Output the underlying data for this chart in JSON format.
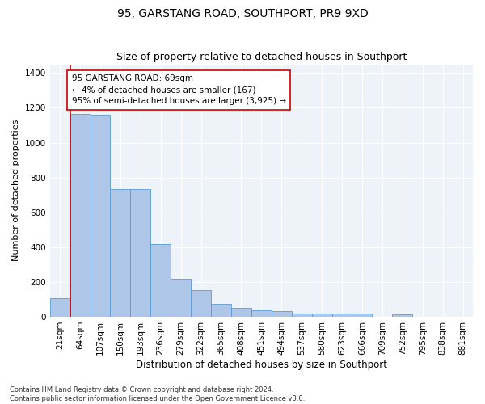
{
  "title": "95, GARSTANG ROAD, SOUTHPORT, PR9 9XD",
  "subtitle": "Size of property relative to detached houses in Southport",
  "xlabel": "Distribution of detached houses by size in Southport",
  "ylabel": "Number of detached properties",
  "categories": [
    "21sqm",
    "64sqm",
    "107sqm",
    "150sqm",
    "193sqm",
    "236sqm",
    "279sqm",
    "322sqm",
    "365sqm",
    "408sqm",
    "451sqm",
    "494sqm",
    "537sqm",
    "580sqm",
    "623sqm",
    "666sqm",
    "709sqm",
    "752sqm",
    "795sqm",
    "838sqm",
    "881sqm"
  ],
  "values": [
    107,
    1163,
    1158,
    733,
    733,
    418,
    218,
    152,
    72,
    50,
    35,
    33,
    20,
    17,
    17,
    20,
    0,
    15,
    0,
    0,
    0
  ],
  "bar_color": "#aec6e8",
  "bar_edge_color": "#5b9bd5",
  "highlight_bar_index": 1,
  "highlight_color": "#cc0000",
  "annotation_line1": "95 GARSTANG ROAD: 69sqm",
  "annotation_line2": "← 4% of detached houses are smaller (167)",
  "annotation_line3": "95% of semi-detached houses are larger (3,925) →",
  "annotation_box_color": "#ffffff",
  "annotation_box_edge": "#cc0000",
  "ylim": [
    0,
    1450
  ],
  "yticks": [
    0,
    200,
    400,
    600,
    800,
    1000,
    1200,
    1400
  ],
  "footer": "Contains HM Land Registry data © Crown copyright and database right 2024.\nContains public sector information licensed under the Open Government Licence v3.0.",
  "bg_color": "#eef2f9",
  "title_fontsize": 10,
  "subtitle_fontsize": 9,
  "xlabel_fontsize": 8.5,
  "ylabel_fontsize": 8,
  "tick_fontsize": 7.5,
  "annotation_fontsize": 7.5,
  "footer_fontsize": 6
}
